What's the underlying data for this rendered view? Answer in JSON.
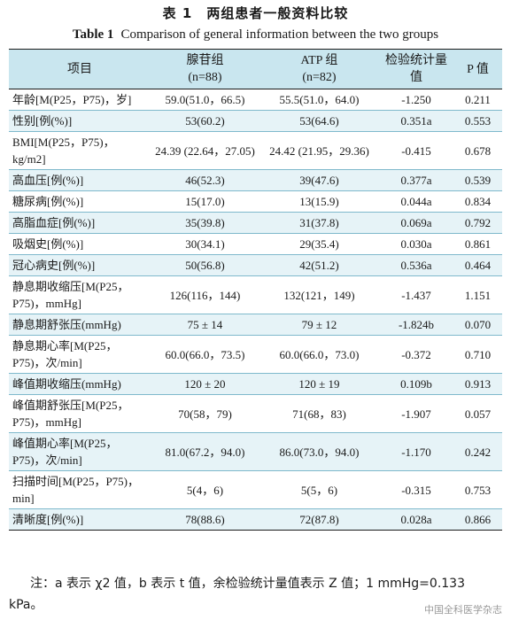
{
  "title_cn": "表 1　两组患者一般资料比较",
  "title_en_label": "Table 1",
  "title_en_text": "Comparison of general information between the two groups",
  "headers": {
    "item": "项目",
    "group1": "腺苷组",
    "group1_n": "(n=88)",
    "group2": "ATP 组",
    "group2_n": "(n=82)",
    "stat": "检验统计量值",
    "p": "P 值"
  },
  "rows": [
    {
      "item": "年龄[M(P25，P75)，岁]",
      "g1": "59.0(51.0，66.5)",
      "g2": "55.5(51.0，64.0)",
      "stat": "-1.250",
      "p": "0.211"
    },
    {
      "item": "性别[例(%)]",
      "g1": "53(60.2)",
      "g2": "53(64.6)",
      "stat": "0.351a",
      "p": "0.553"
    },
    {
      "item": "BMI[M(P25，P75)，kg/m2]",
      "g1": "24.39 (22.64，27.05)",
      "g2": "24.42 (21.95，29.36)",
      "stat": "-0.415",
      "p": "0.678"
    },
    {
      "item": "高血压[例(%)]",
      "g1": "46(52.3)",
      "g2": "39(47.6)",
      "stat": "0.377a",
      "p": "0.539"
    },
    {
      "item": "糖尿病[例(%)]",
      "g1": "15(17.0)",
      "g2": "13(15.9)",
      "stat": "0.044a",
      "p": "0.834"
    },
    {
      "item": "高脂血症[例(%)]",
      "g1": "35(39.8)",
      "g2": "31(37.8)",
      "stat": "0.069a",
      "p": "0.792"
    },
    {
      "item": "吸烟史[例(%)]",
      "g1": "30(34.1)",
      "g2": "29(35.4)",
      "stat": "0.030a",
      "p": "0.861"
    },
    {
      "item": "冠心病史[例(%)]",
      "g1": "50(56.8)",
      "g2": "42(51.2)",
      "stat": "0.536a",
      "p": "0.464"
    },
    {
      "item": "静息期收缩压[M(P25，P75)，mmHg]",
      "g1": "126(116，144)",
      "g2": "132(121，149)",
      "stat": "-1.437",
      "p": "1.151"
    },
    {
      "item": "静息期舒张压(mmHg)",
      "g1": "75 ± 14",
      "g2": "79 ± 12",
      "stat": "-1.824b",
      "p": "0.070"
    },
    {
      "item": "静息期心率[M(P25，P75)，次/min]",
      "g1": "60.0(66.0，73.5)",
      "g2": "60.0(66.0，73.0)",
      "stat": "-0.372",
      "p": "0.710"
    },
    {
      "item": "峰值期收缩压(mmHg)",
      "g1": "120 ± 20",
      "g2": "120 ± 19",
      "stat": "0.109b",
      "p": "0.913"
    },
    {
      "item": "峰值期舒张压[M(P25，P75)，mmHg]",
      "g1": "70(58，79)",
      "g2": "71(68，83)",
      "stat": "-1.907",
      "p": "0.057"
    },
    {
      "item": "峰值期心率[M(P25，P75)，次/min]",
      "g1": "81.0(67.2，94.0)",
      "g2": "86.0(73.0，94.0)",
      "stat": "-1.170",
      "p": "0.242"
    },
    {
      "item": "扫描时间[M(P25，P75)，min]",
      "g1": "5(4，6)",
      "g2": "5(5，6)",
      "stat": "-0.315",
      "p": "0.753"
    },
    {
      "item": "清晰度[例(%)]",
      "g1": "78(88.6)",
      "g2": "72(87.8)",
      "stat": "0.028a",
      "p": "0.866"
    }
  ],
  "note": "注：a 表示 χ2 值，b 表示 t 值，余检验统计量值表示 Z 值；1 mmHg=0.133 kPa。",
  "watermark": "中国全科医学杂志",
  "colors": {
    "header_bg": "#c9e6ef",
    "stripe_bg": "#e6f3f7",
    "rule": "#7fb9cc"
  }
}
